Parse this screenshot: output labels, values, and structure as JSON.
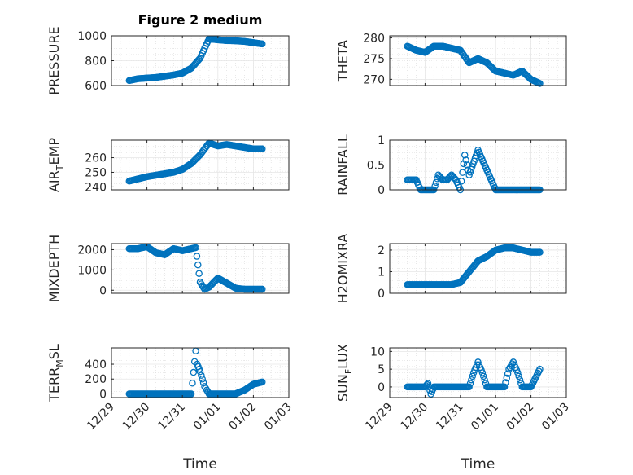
{
  "figure": {
    "title": "Figure 2 medium"
  },
  "colors": {
    "marker": "#0072BD",
    "axis": "#262626",
    "grid": "#d9d9d9"
  },
  "chart_data": [
    {
      "type": "scatter",
      "title": "Figure 2 medium",
      "ylabel": "PRESSURE",
      "xlabel": "",
      "x_range": [
        "12/29",
        "01/03"
      ],
      "ylim": [
        600,
        1000
      ],
      "y_ticks": [
        "600",
        "800",
        "1000"
      ],
      "x_ticks": [],
      "grid": true,
      "x": [
        "12/29 12:00",
        "12/29 18:00",
        "12/30 00:00",
        "12/30 06:00",
        "12/30 12:00",
        "12/30 18:00",
        "12/31 00:00",
        "12/31 06:00",
        "12/31 12:00",
        "12/31 15:00",
        "12/31 18:00",
        "01/01 00:00",
        "01/01 06:00",
        "01/01 12:00",
        "01/01 18:00",
        "01/02 00:00",
        "01/02 06:00"
      ],
      "y": [
        640,
        655,
        660,
        665,
        675,
        685,
        700,
        740,
        820,
        900,
        975,
        968,
        962,
        960,
        955,
        945,
        935
      ]
    },
    {
      "type": "scatter",
      "ylabel": "THETA",
      "xlabel": "",
      "x_range": [
        "12/29",
        "01/03"
      ],
      "ylim": [
        268.5,
        280.5
      ],
      "y_ticks": [
        "270",
        "275",
        "280"
      ],
      "x_ticks": [],
      "grid": true,
      "x": [
        "12/29 12:00",
        "12/29 18:00",
        "12/30 00:00",
        "12/30 06:00",
        "12/30 12:00",
        "12/30 18:00",
        "12/31 00:00",
        "12/31 06:00",
        "12/31 12:00",
        "12/31 18:00",
        "01/01 00:00",
        "01/01 06:00",
        "01/01 12:00",
        "01/01 18:00",
        "01/02 00:00",
        "01/02 06:00"
      ],
      "y": [
        278,
        277,
        276.5,
        278,
        278,
        277.5,
        277,
        274,
        275,
        274,
        272,
        271.5,
        271,
        272,
        270,
        269
      ]
    },
    {
      "type": "scatter",
      "ylabel": "AIR_TEMP",
      "xlabel": "",
      "x_range": [
        "12/29",
        "01/03"
      ],
      "ylim": [
        238,
        272
      ],
      "y_ticks": [
        "240",
        "250",
        "260"
      ],
      "x_ticks": [],
      "grid": true,
      "x": [
        "12/29 12:00",
        "12/29 18:00",
        "12/30 00:00",
        "12/30 06:00",
        "12/30 12:00",
        "12/30 18:00",
        "12/31 00:00",
        "12/31 06:00",
        "12/31 12:00",
        "12/31 15:00",
        "12/31 18:00",
        "01/01 00:00",
        "01/01 06:00",
        "01/01 12:00",
        "01/01 18:00",
        "01/02 00:00",
        "01/02 06:00"
      ],
      "y": [
        244,
        245.5,
        247,
        248,
        249,
        250,
        252,
        256,
        262,
        266,
        270,
        268,
        269,
        268,
        267,
        266,
        266
      ]
    },
    {
      "type": "scatter",
      "ylabel": "RAINFALL",
      "xlabel": "",
      "x_range": [
        "12/29",
        "01/03"
      ],
      "ylim": [
        0,
        1
      ],
      "y_ticks": [
        "0",
        "0.5",
        "1"
      ],
      "x_ticks": [],
      "grid": true,
      "x": [
        "12/29 12:00",
        "12/29 15:00",
        "12/29 18:00",
        "12/29 21:00",
        "12/30 00:00",
        "12/30 06:00",
        "12/30 09:00",
        "12/30 12:00",
        "12/30 15:00",
        "12/30 18:00",
        "12/30 21:00",
        "12/31 00:00",
        "12/31 03:00",
        "12/31 06:00",
        "12/31 12:00",
        "01/01 00:00",
        "01/01 12:00",
        "01/02 00:00",
        "01/02 06:00"
      ],
      "y": [
        0.2,
        0.2,
        0.2,
        0.0,
        0.0,
        0.0,
        0.3,
        0.2,
        0.2,
        0.3,
        0.2,
        0.0,
        0.7,
        0.3,
        0.8,
        0.0,
        0.0,
        0.0,
        0.0
      ]
    },
    {
      "type": "scatter",
      "ylabel": "MIXDEPTH",
      "xlabel": "",
      "x_range": [
        "12/29",
        "01/03"
      ],
      "ylim": [
        -150,
        2300
      ],
      "y_ticks": [
        "0",
        "1000",
        "2000"
      ],
      "x_ticks": [],
      "grid": true,
      "x": [
        "12/29 12:00",
        "12/29 18:00",
        "12/30 00:00",
        "12/30 06:00",
        "12/30 12:00",
        "12/30 18:00",
        "12/31 00:00",
        "12/31 06:00",
        "12/31 09:00",
        "12/31 12:00",
        "12/31 15:00",
        "12/31 18:00",
        "01/01 00:00",
        "01/01 06:00",
        "01/01 12:00",
        "01/01 18:00",
        "01/02 00:00",
        "01/02 06:00"
      ],
      "y": [
        2050,
        2050,
        2150,
        1850,
        1750,
        2050,
        1950,
        2050,
        2100,
        400,
        50,
        150,
        600,
        350,
        100,
        50,
        50,
        50
      ]
    },
    {
      "type": "scatter",
      "ylabel": "H2OMIXRA",
      "xlabel": "",
      "x_range": [
        "12/29",
        "01/03"
      ],
      "ylim": [
        0,
        2.3
      ],
      "y_ticks": [
        "0",
        "1",
        "2"
      ],
      "x_ticks": [],
      "grid": true,
      "x": [
        "12/29 12:00",
        "12/29 18:00",
        "12/30 00:00",
        "12/30 06:00",
        "12/30 12:00",
        "12/30 18:00",
        "12/31 00:00",
        "12/31 06:00",
        "12/31 12:00",
        "12/31 18:00",
        "01/01 00:00",
        "01/01 06:00",
        "01/01 12:00",
        "01/01 18:00",
        "01/02 00:00",
        "01/02 06:00"
      ],
      "y": [
        0.4,
        0.4,
        0.4,
        0.4,
        0.4,
        0.4,
        0.5,
        1.0,
        1.5,
        1.7,
        2.0,
        2.1,
        2.1,
        2.0,
        1.9,
        1.9
      ]
    },
    {
      "type": "scatter",
      "ylabel": "TERR_MSL",
      "xlabel": "Time",
      "x_range": [
        "12/29",
        "01/03"
      ],
      "ylim": [
        -50,
        620
      ],
      "y_ticks": [
        "0",
        "200",
        "400"
      ],
      "x_ticks": [
        "12/29",
        "12/30",
        "12/31",
        "01/01",
        "01/02",
        "01/03"
      ],
      "grid": true,
      "x": [
        "12/29 12:00",
        "12/29 18:00",
        "12/30 00:00",
        "12/30 06:00",
        "12/30 12:00",
        "12/30 18:00",
        "12/31 00:00",
        "12/31 06:00",
        "12/31 09:00",
        "12/31 10:00",
        "12/31 12:00",
        "12/31 15:00",
        "12/31 18:00",
        "01/01 00:00",
        "01/01 06:00",
        "01/01 12:00",
        "01/01 18:00",
        "01/02 00:00",
        "01/02 06:00"
      ],
      "y": [
        0,
        0,
        0,
        0,
        0,
        0,
        0,
        0,
        580,
        400,
        300,
        100,
        0,
        0,
        0,
        0,
        50,
        130,
        160
      ]
    },
    {
      "type": "scatter",
      "ylabel": "SUN_FLUX",
      "xlabel": "Time",
      "x_range": [
        "12/29",
        "01/03"
      ],
      "ylim": [
        -3,
        11
      ],
      "y_ticks": [
        "0",
        "5",
        "10"
      ],
      "x_ticks": [
        "12/29",
        "12/30",
        "12/31",
        "01/01",
        "01/02",
        "01/03"
      ],
      "grid": true,
      "x": [
        "12/29 12:00",
        "12/29 18:00",
        "12/30 00:00",
        "12/30 02:00",
        "12/30 04:00",
        "12/30 06:00",
        "12/30 12:00",
        "12/31 00:00",
        "12/31 06:00",
        "12/31 09:00",
        "12/31 12:00",
        "12/31 15:00",
        "12/31 18:00",
        "01/01 00:00",
        "01/01 06:00",
        "01/01 09:00",
        "01/01 12:00",
        "01/01 15:00",
        "01/01 18:00",
        "01/02 00:00",
        "01/02 06:00"
      ],
      "y": [
        0,
        0,
        0,
        1,
        -2,
        0,
        0,
        0,
        0,
        4,
        7,
        4,
        0,
        0,
        0,
        5,
        7,
        4,
        0,
        0,
        5
      ]
    }
  ]
}
